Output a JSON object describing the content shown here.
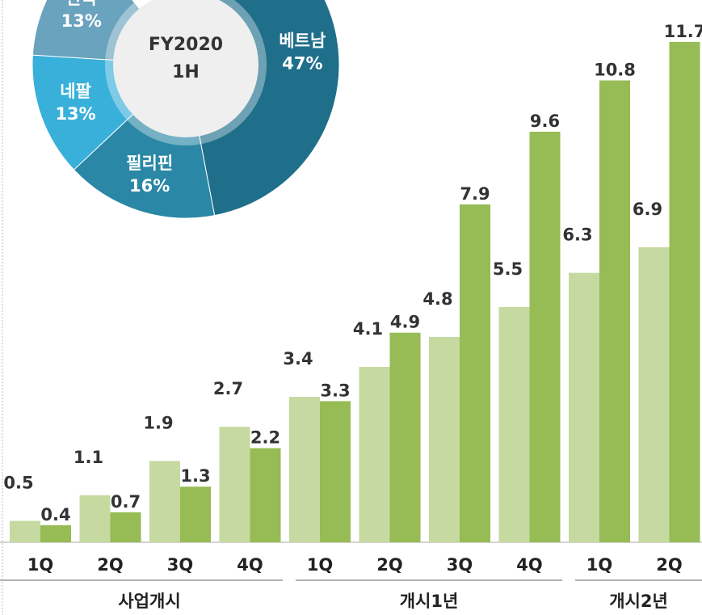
{
  "chart_data": [
    {
      "type": "bar",
      "categories": [
        "1Q",
        "2Q",
        "3Q",
        "4Q",
        "1Q",
        "2Q",
        "3Q",
        "4Q",
        "1Q",
        "2Q"
      ],
      "groups": [
        {
          "label": "사업개시",
          "count": 4
        },
        {
          "label": "개시1년",
          "count": 4
        },
        {
          "label": "개시2년",
          "count": 2
        }
      ],
      "series": [
        {
          "color": "#c5d9a0",
          "values": [
            0.5,
            1.1,
            1.9,
            2.7,
            3.4,
            4.1,
            4.8,
            5.5,
            6.3,
            6.9
          ]
        },
        {
          "color": "#97bb55",
          "values": [
            0.4,
            0.7,
            1.3,
            2.2,
            3.3,
            4.9,
            7.9,
            9.6,
            10.8,
            11.7
          ]
        }
      ],
      "ylim": [
        0,
        12
      ]
    },
    {
      "type": "pie",
      "center_label": [
        "FY2020",
        "1H"
      ],
      "categories": [
        "베트남",
        "필리핀",
        "네팔",
        "한국"
      ],
      "values": [
        47,
        16,
        13,
        13
      ],
      "value_labels": [
        "47%",
        "16%",
        "13%",
        "13%"
      ],
      "colors": [
        "#1f6f8b",
        "#2a87a5",
        "#38b0da",
        "#6aa3bd"
      ]
    }
  ]
}
